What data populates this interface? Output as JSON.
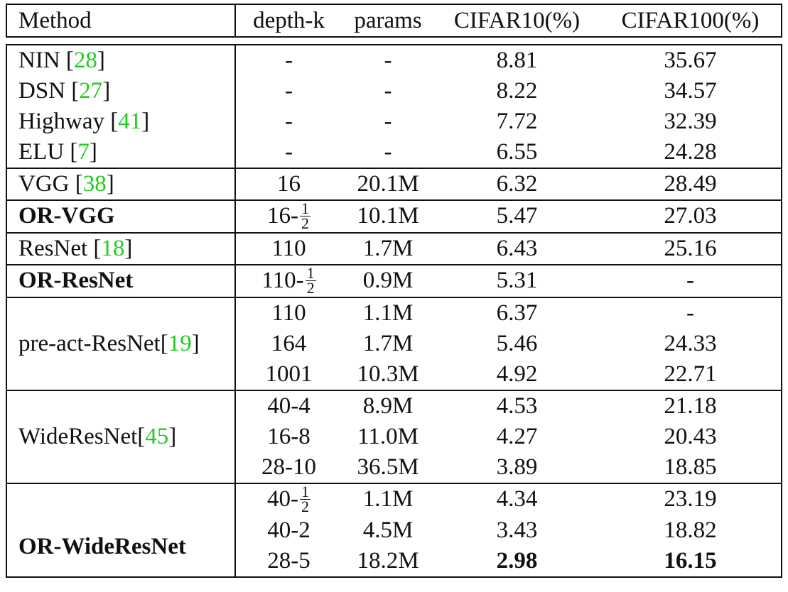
{
  "headers": [
    "Method",
    "depth-k",
    "params",
    "CIFAR10(%)",
    "CIFAR100(%)"
  ],
  "rows": [
    {
      "method": "NIN",
      "cite": "28",
      "depth": "-",
      "params": "-",
      "c10": "8.81",
      "c100": "35.67"
    },
    {
      "method": "DSN",
      "cite": "27",
      "depth": "-",
      "params": "-",
      "c10": "8.22",
      "c100": "34.57"
    },
    {
      "method": "Highway",
      "cite": "41",
      "depth": "-",
      "params": "-",
      "c10": "7.72",
      "c100": "32.39"
    },
    {
      "method": "ELU",
      "cite": "7",
      "depth": "-",
      "params": "-",
      "c10": "6.55",
      "c100": "24.28"
    },
    {
      "method": "VGG",
      "cite": "38",
      "depth": "16",
      "params": "20.1M",
      "c10": "6.32",
      "c100": "28.49"
    },
    {
      "method": "OR-VGG",
      "depth_prefix": "16-",
      "frac_num": "1",
      "frac_den": "2",
      "params": "10.1M",
      "c10": "5.47",
      "c100": "27.03"
    },
    {
      "method": "ResNet",
      "cite": "18",
      "depth": "110",
      "params": "1.7M",
      "c10": "6.43",
      "c100": "25.16"
    },
    {
      "method": "OR-ResNet",
      "depth_prefix": "110-",
      "frac_num": "1",
      "frac_den": "2",
      "params": "0.9M",
      "c10": "5.31",
      "c100": "-"
    },
    {
      "method": "pre-act-ResNet",
      "cite": "19",
      "depth": "110",
      "params": "1.1M",
      "c10": "6.37",
      "c100": "-"
    },
    {
      "depth": "164",
      "params": "1.7M",
      "c10": "5.46",
      "c100": "24.33"
    },
    {
      "depth": "1001",
      "params": "10.3M",
      "c10": "4.92",
      "c100": "22.71"
    },
    {
      "method": "WideResNet",
      "cite": "45",
      "depth": "40-4",
      "params": "8.9M",
      "c10": "4.53",
      "c100": "21.18"
    },
    {
      "depth": "16-8",
      "params": "11.0M",
      "c10": "4.27",
      "c100": "20.43"
    },
    {
      "depth": "28-10",
      "params": "36.5M",
      "c10": "3.89",
      "c100": "18.85"
    },
    {
      "method": "OR-WideResNet",
      "depth_prefix": "40-",
      "frac_num": "1",
      "frac_den": "2",
      "params": "1.1M",
      "c10": "4.34",
      "c100": "23.19"
    },
    {
      "depth": "40-2",
      "params": "4.5M",
      "c10": "3.43",
      "c100": "18.82"
    },
    {
      "depth": "28-5",
      "params": "18.2M",
      "c10": "2.98",
      "c100": "16.15"
    }
  ]
}
